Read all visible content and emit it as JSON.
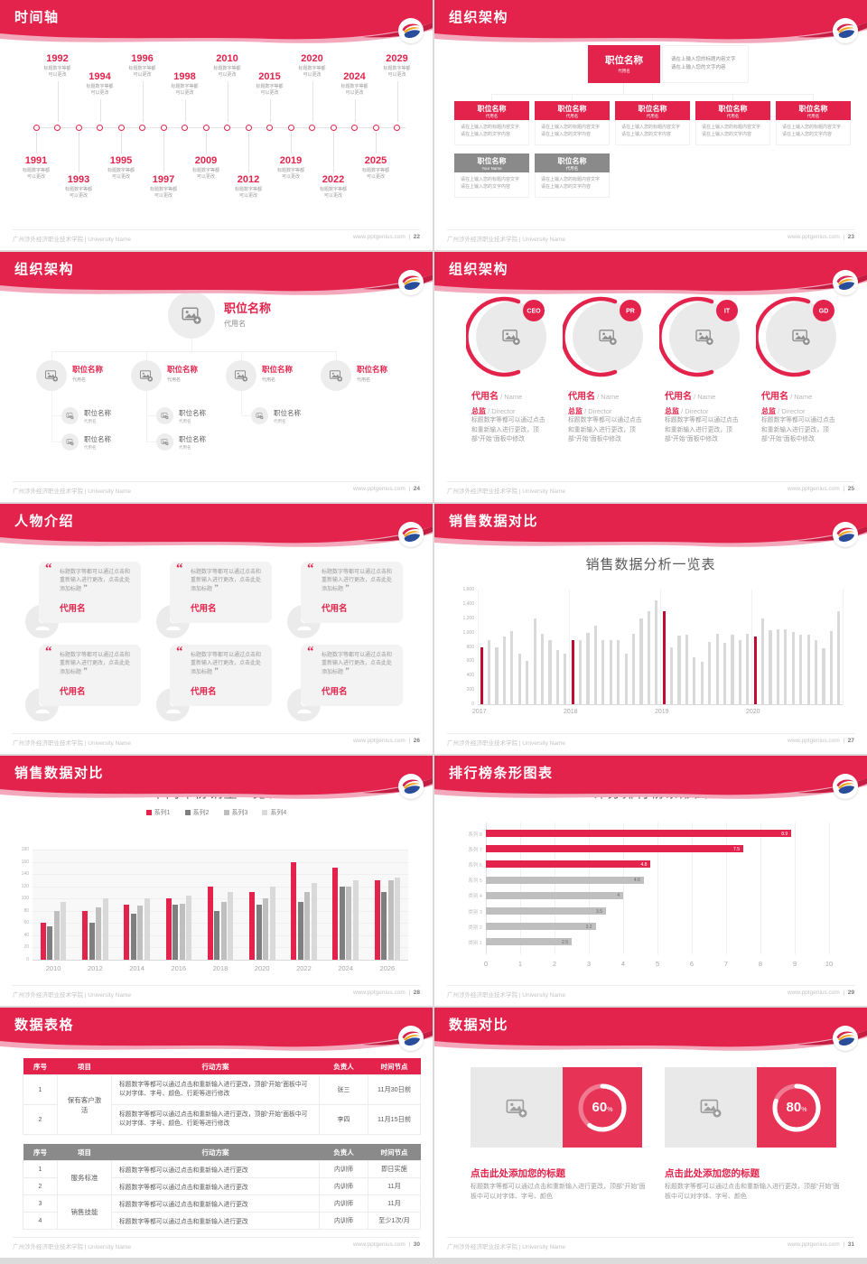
{
  "brand": {
    "accent": "#e3234c",
    "accent_dark": "#c20b33",
    "gray_header": "#8a8a8a",
    "bar_gray": "#d9d9d9",
    "donut_box": "#e73356",
    "logo": "swoosh-logo"
  },
  "footer": {
    "org": "广州涉外经济职业技术学院 | University Name",
    "site": "www.pptgenius.com"
  },
  "slides": {
    "timeline": {
      "title": "时间轴",
      "page": "22",
      "caption": [
        "标题数字等都",
        "可以更改"
      ],
      "top_years": [
        "1992",
        "1994",
        "1996",
        "1998",
        "2010",
        "2015",
        "2020",
        "2024",
        "2029"
      ],
      "bottom_years": [
        "1991",
        "1993",
        "1995",
        "1997",
        "2009",
        "2012",
        "2019",
        "2022",
        "2025"
      ]
    },
    "org_boxes": {
      "title": "组织架构",
      "page": "23",
      "root_title": "职位名称",
      "root_sub": "代用名",
      "note": [
        "请在上输入您的标题内容文字",
        "请在上输入您的文字内容"
      ],
      "row1": [
        {
          "t": "职位名称",
          "s": "代用名"
        },
        {
          "t": "职位名称",
          "s": "代用名"
        },
        {
          "t": "职位名称",
          "s": "代用名"
        },
        {
          "t": "职位名称",
          "s": "代用名"
        },
        {
          "t": "职位名称",
          "s": "代用名"
        }
      ],
      "row2": [
        {
          "t": "职位名称",
          "s": "Your Name"
        },
        {
          "t": "职位名称",
          "s": "代用名"
        }
      ]
    },
    "org_tree": {
      "title": "组织架构",
      "page": "24",
      "root_title": "职位名称",
      "root_sub": "代用名",
      "nodes": [
        {
          "t": "职位名称",
          "s": "代用名",
          "children": [
            {
              "t": "职位名称",
              "s": "代用名"
            },
            {
              "t": "职位名称",
              "s": "代用名"
            }
          ]
        },
        {
          "t": "职位名称",
          "s": "代用名",
          "children": [
            {
              "t": "职位名称",
              "s": "代用名"
            },
            {
              "t": "职位名称",
              "s": "代用名"
            }
          ]
        },
        {
          "t": "职位名称",
          "s": "代用名",
          "children": [
            {
              "t": "职位名称",
              "s": "代用名"
            }
          ]
        },
        {
          "t": "职位名称",
          "s": "代用名",
          "children": []
        }
      ]
    },
    "org_circles": {
      "title": "组织架构",
      "page": "25",
      "members": [
        {
          "badge": "CEO",
          "name": "代用名",
          "name_en": "/ Name",
          "role": "总监",
          "role_en": "/ Director",
          "desc": "标题数字等都可以通过点击和重新输入进行更改，顶部“开始”面板中修改"
        },
        {
          "badge": "PR",
          "name": "代用名",
          "name_en": "/ Name",
          "role": "总监",
          "role_en": "/ Director",
          "desc": "标题数字等都可以通过点击和重新输入进行更改，顶部“开始”面板中修改"
        },
        {
          "badge": "IT",
          "name": "代用名",
          "name_en": "/ Name",
          "role": "总监",
          "role_en": "/ Director",
          "desc": "标题数字等都可以通过点击和重新输入进行更改，顶部“开始”面板中修改"
        },
        {
          "badge": "GD",
          "name": "代用名",
          "name_en": "/ Name",
          "role": "总监",
          "role_en": "/ Director",
          "desc": "标题数字等都可以通过点击和重新输入进行更改，顶部“开始”面板中修改"
        }
      ]
    },
    "people": {
      "title": "人物介绍",
      "page": "26",
      "cards": [
        {
          "quote": "标题数字等都可以通过点击和重新输入进行更改，点击此处添加标题",
          "name": "代用名"
        },
        {
          "quote": "标题数字等都可以通过点击和重新输入进行更改，点击此处添加标题",
          "name": "代用名"
        },
        {
          "quote": "标题数字等都可以通过点击和重新输入进行更改，点击此处添加标题",
          "name": "代用名"
        },
        {
          "quote": "标题数字等都可以通过点击和重新输入进行更改，点击此处添加标题",
          "name": "代用名"
        },
        {
          "quote": "标题数字等都可以通过点击和重新输入进行更改，点击此处添加标题",
          "name": "代用名"
        },
        {
          "quote": "标题数字等都可以通过点击和重新输入进行更改，点击此处添加标题",
          "name": "代用名"
        }
      ]
    },
    "sales_monthly": {
      "title": "销售数据对比",
      "page": "27"
    },
    "sales_yearly": {
      "title": "销售数据对比",
      "page": "28"
    },
    "ranking": {
      "title": "排行榜条形图表",
      "page": "29"
    },
    "tables": {
      "title": "数据表格",
      "page": "30",
      "headers": [
        "序号",
        "项目",
        "行动方案",
        "负责人",
        "时间节点"
      ],
      "table1": {
        "group": "保有客户激活",
        "plan": "标题数字等都可以通过点击和重新输入进行更改，顶部“开始”面板中可以对字体、字号、颜色、行距等进行修改",
        "rows": [
          {
            "no": "1",
            "owner": "张三",
            "due": "11月30日前"
          },
          {
            "no": "2",
            "owner": "李四",
            "due": "11月15日前"
          }
        ]
      },
      "table2": {
        "groups": [
          "服务标准",
          "销售技能"
        ],
        "plan": "标题数字等都可以通过点击和重新输入进行更改",
        "rows": [
          {
            "no": "1",
            "owner": "内训师",
            "due": "即日实施"
          },
          {
            "no": "2",
            "owner": "内训师",
            "due": "11月"
          },
          {
            "no": "3",
            "owner": "内训师",
            "due": "11月"
          },
          {
            "no": "4",
            "owner": "内训师",
            "due": "至少1次/月"
          }
        ]
      }
    },
    "compare": {
      "title": "数据对比",
      "page": "31",
      "items": [
        {
          "pct": 60,
          "unit": "%",
          "heading": "点击此处添加您的标题",
          "body": "标题数字等都可以通过点击和重新输入进行更改，顶部“开始”面板中可以对字体、字号、颜色"
        },
        {
          "pct": 80,
          "unit": "%",
          "heading": "点击此处添加您的标题",
          "body": "标题数字等都可以通过点击和重新输入进行更改，顶部“开始”面板中可以对字体、字号、颜色"
        }
      ]
    }
  },
  "chart_data": [
    {
      "slide": "sales_monthly",
      "type": "bar",
      "title": "销售数据分析一览表",
      "x_groups": [
        "2017",
        "2018",
        "2019",
        "2020"
      ],
      "values": [
        800,
        900,
        800,
        950,
        1020,
        700,
        600,
        1200,
        980,
        890,
        760,
        700,
        900,
        890,
        990,
        1100,
        890,
        900,
        890,
        700,
        980,
        1200,
        1300,
        1450,
        1300,
        800,
        960,
        970,
        660,
        590,
        870,
        980,
        860,
        970,
        900,
        980,
        950,
        1200,
        1030,
        1040,
        1040,
        1010,
        970,
        970,
        890,
        780,
        1020,
        1300
      ],
      "highlight_indices": [
        0,
        12,
        24,
        36
      ],
      "ylim": [
        0,
        1600
      ],
      "ytick_step": 200,
      "bar_color": "#d9d9d9",
      "highlight_color": "#c20b33",
      "legend_position": "none",
      "grid": "vertical-faint"
    },
    {
      "slide": "sales_yearly",
      "type": "bar",
      "title": "不同年份销量一览表",
      "categories": [
        "2010",
        "2012",
        "2014",
        "2016",
        "2018",
        "2020",
        "2022",
        "2024",
        "2026"
      ],
      "series": [
        {
          "name": "系列1",
          "color": "#e3234c",
          "values": [
            60,
            80,
            90,
            100,
            120,
            110,
            160,
            150,
            130
          ]
        },
        {
          "name": "系列2",
          "color": "#7f7f7f",
          "values": [
            55,
            60,
            75,
            90,
            80,
            90,
            95,
            120,
            110
          ]
        },
        {
          "name": "系列3",
          "color": "#bfbfbf",
          "values": [
            80,
            85,
            88,
            91,
            95,
            100,
            110,
            120,
            130
          ]
        },
        {
          "name": "系列4",
          "color": "#d9d9d9",
          "values": [
            95,
            100,
            100,
            105,
            110,
            120,
            125,
            130,
            135
          ]
        }
      ],
      "ylim": [
        0,
        180
      ],
      "ytick_step": 20,
      "legend_position": "top",
      "grid": "horizontal"
    },
    {
      "slide": "ranking",
      "type": "bar-horizontal",
      "title": "评分排行榜条形图",
      "categories": [
        "系列 8",
        "系列 7",
        "系列 6",
        "系列 5",
        "类别 4",
        "类别 3",
        "类别 2",
        "类别 1"
      ],
      "values": [
        8.9,
        7.5,
        4.8,
        4.6,
        4,
        3.5,
        3.2,
        2.5
      ],
      "colors": [
        "#e3234c",
        "#e3234c",
        "#e3234c",
        "#bfbfbf",
        "#bfbfbf",
        "#bfbfbf",
        "#bfbfbf",
        "#bfbfbf"
      ],
      "xlim": [
        0,
        10
      ],
      "xtick_step": 1,
      "grid": "vertical",
      "legend_position": "none"
    }
  ]
}
